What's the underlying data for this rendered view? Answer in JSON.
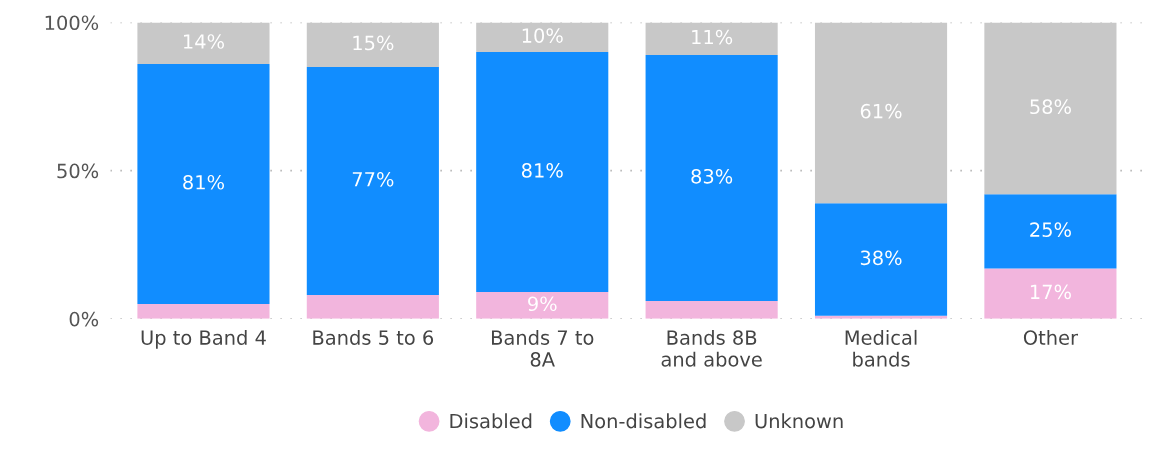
{
  "chart_data": {
    "type": "bar",
    "stacked": true,
    "categories": [
      "Up to Band 4",
      "Bands 5 to 6",
      "Bands 7 to\n8A",
      "Bands 8B\nand above",
      "Medical\nbands",
      "Other"
    ],
    "series": [
      {
        "name": "Disabled",
        "color": "#f2b5dd",
        "values": [
          5,
          8,
          9,
          6,
          1,
          17
        ],
        "value_labels": [
          null,
          null,
          "9%",
          null,
          null,
          "17%"
        ]
      },
      {
        "name": "Non-disabled",
        "color": "#118dff",
        "values": [
          81,
          77,
          81,
          83,
          38,
          25
        ],
        "value_labels": [
          "81%",
          "77%",
          "81%",
          "83%",
          "38%",
          "25%"
        ]
      },
      {
        "name": "Unknown",
        "color": "#c8c8c8",
        "values": [
          14,
          15,
          10,
          11,
          61,
          58
        ],
        "value_labels": [
          "14%",
          "15%",
          "10%",
          "11%",
          "61%",
          "58%"
        ]
      }
    ],
    "ylim": [
      0,
      100
    ],
    "yticks": [
      {
        "value": 0,
        "label": "0%"
      },
      {
        "value": 50,
        "label": "50%"
      },
      {
        "value": 100,
        "label": "100%"
      }
    ],
    "grid": "y",
    "legend": "bottom"
  }
}
